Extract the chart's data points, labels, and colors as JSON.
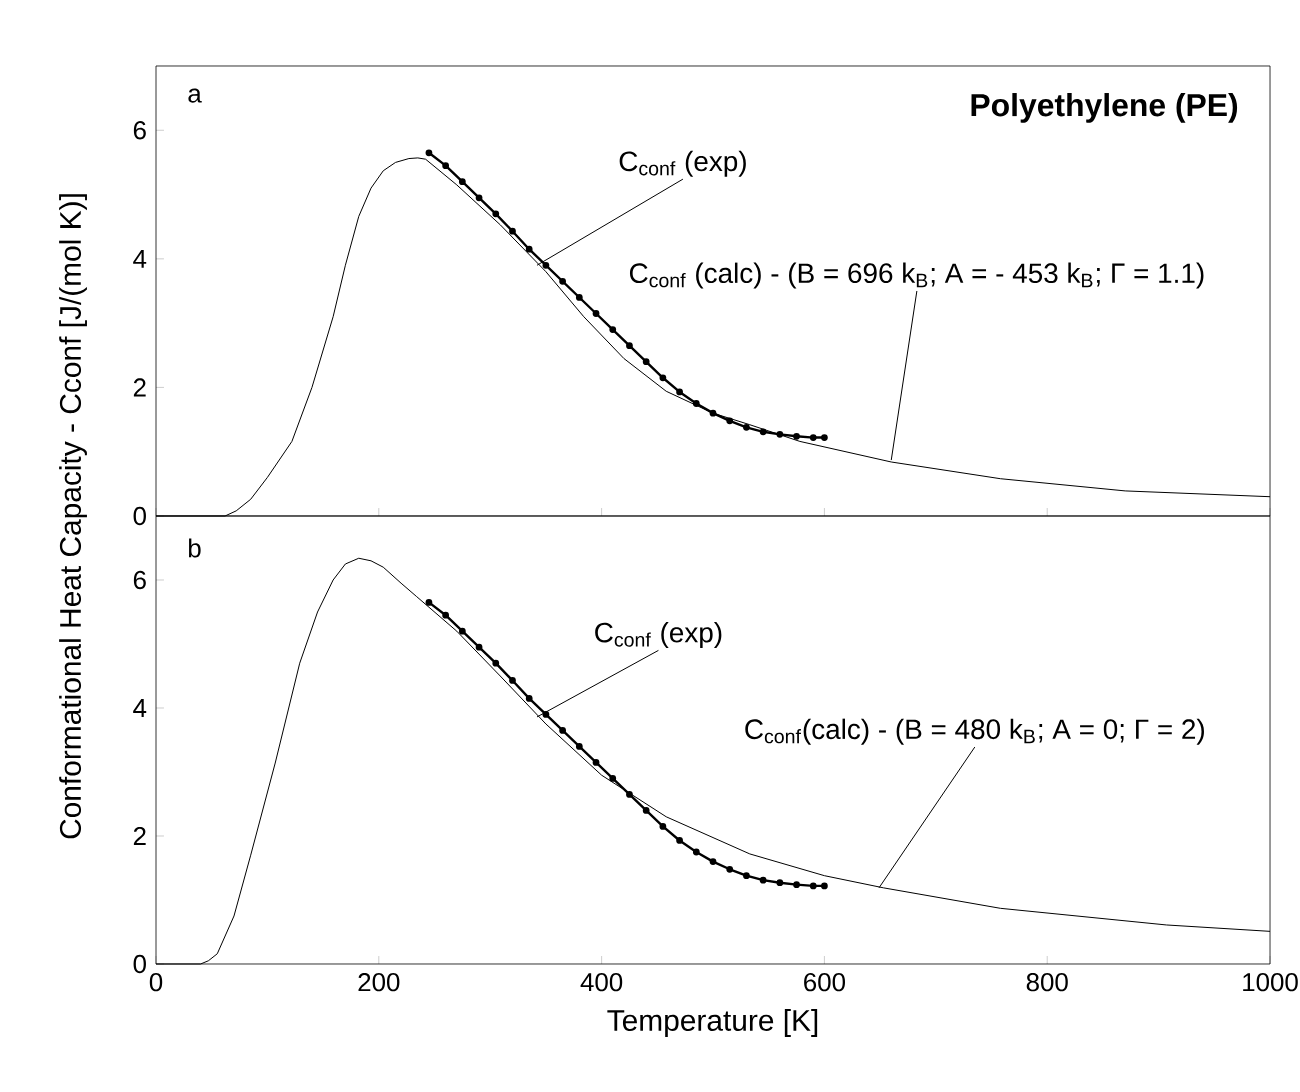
{
  "chart_data": [
    {
      "type": "line",
      "title": "Polyethylene (PE)",
      "ylabel": "Conformational Heat Capacity - Cconf  [J/(mol K)]",
      "xlim": [
        0,
        1000
      ],
      "ylim": [
        0,
        7
      ],
      "xticks": [
        0,
        200,
        400,
        600,
        800,
        1000
      ],
      "yticks": [
        0,
        2,
        4,
        6
      ],
      "tick_labels": "y",
      "annotations": [
        "a",
        {
          "text": "C$_{conf}$ (exp)",
          "x": 342,
          "y": 3.9
        },
        {
          "text": "C$_{conf}$ (calc) - (B = 696 k$_{B}$; A = - 453 k$_{B}$; Γ = 1.1)",
          "x": 660,
          "y": 0.87
        }
      ],
      "series": [
        {
          "color": "#000000",
          "x": [
            0,
            62,
            72,
            85,
            100,
            122,
            140,
            159,
            170,
            182,
            193,
            204,
            215,
            227,
            235,
            242,
            270,
            309,
            350,
            384,
            420,
            458,
            500,
            533,
            578,
            660,
            758,
            870,
            1000
          ],
          "values": [
            0,
            0,
            0.08,
            0.26,
            0.6,
            1.16,
            2.0,
            3.1,
            3.9,
            4.66,
            5.1,
            5.37,
            5.5,
            5.56,
            5.57,
            5.55,
            5.15,
            4.53,
            3.8,
            3.1,
            2.45,
            1.94,
            1.6,
            1.42,
            1.16,
            0.84,
            0.58,
            0.39,
            0.3
          ]
        },
        {
          "color": "#000000",
          "marker": "circle",
          "x": [
            245,
            260,
            275,
            290,
            305,
            320,
            335,
            350,
            365,
            380,
            395,
            410,
            425,
            440,
            455,
            470,
            485,
            500,
            515,
            530,
            545,
            560,
            575,
            590,
            600
          ],
          "values": [
            5.65,
            5.45,
            5.2,
            4.95,
            4.7,
            4.43,
            4.15,
            3.9,
            3.65,
            3.4,
            3.15,
            2.9,
            2.65,
            2.4,
            2.15,
            1.93,
            1.75,
            1.6,
            1.48,
            1.38,
            1.31,
            1.27,
            1.24,
            1.22,
            1.22
          ]
        }
      ]
    },
    {
      "type": "line",
      "xlabel": "Temperature [K]",
      "xlim": [
        0,
        1000
      ],
      "ylim": [
        0,
        7
      ],
      "xticks": [
        0,
        200,
        400,
        600,
        800,
        1000
      ],
      "yticks": [
        0,
        2,
        4,
        6
      ],
      "annotations": [
        "b",
        {
          "text": "C$_{conf}$ (exp)",
          "x": 342,
          "y": 3.86
        },
        {
          "text": "C$_{conf}$(calc) - (B = 480 k$_{B}$; A = 0; Γ = 2)",
          "x": 649,
          "y": 1.19
        }
      ],
      "series": [
        {
          "color": "#000000",
          "x": [
            0,
            40,
            47,
            55,
            70,
            85,
            107,
            129,
            145,
            159,
            170,
            182,
            193,
            204,
            220,
            234,
            270,
            309,
            350,
            400,
            458,
            533,
            600,
            653,
            758,
            907,
            1000
          ],
          "values": [
            0,
            0,
            0.05,
            0.16,
            0.75,
            1.7,
            3.14,
            4.7,
            5.5,
            6.0,
            6.25,
            6.34,
            6.3,
            6.2,
            5.95,
            5.74,
            5.2,
            4.5,
            3.75,
            2.95,
            2.3,
            1.72,
            1.38,
            1.19,
            0.87,
            0.61,
            0.51
          ]
        },
        {
          "color": "#000000",
          "marker": "circle",
          "x": [
            245,
            260,
            275,
            290,
            305,
            320,
            335,
            350,
            365,
            380,
            395,
            410,
            425,
            440,
            455,
            470,
            485,
            500,
            515,
            530,
            545,
            560,
            575,
            590,
            600
          ],
          "values": [
            5.65,
            5.45,
            5.2,
            4.95,
            4.7,
            4.43,
            4.15,
            3.9,
            3.65,
            3.4,
            3.15,
            2.9,
            2.65,
            2.4,
            2.15,
            1.93,
            1.75,
            1.6,
            1.48,
            1.38,
            1.31,
            1.27,
            1.24,
            1.22,
            1.22
          ]
        }
      ]
    }
  ]
}
